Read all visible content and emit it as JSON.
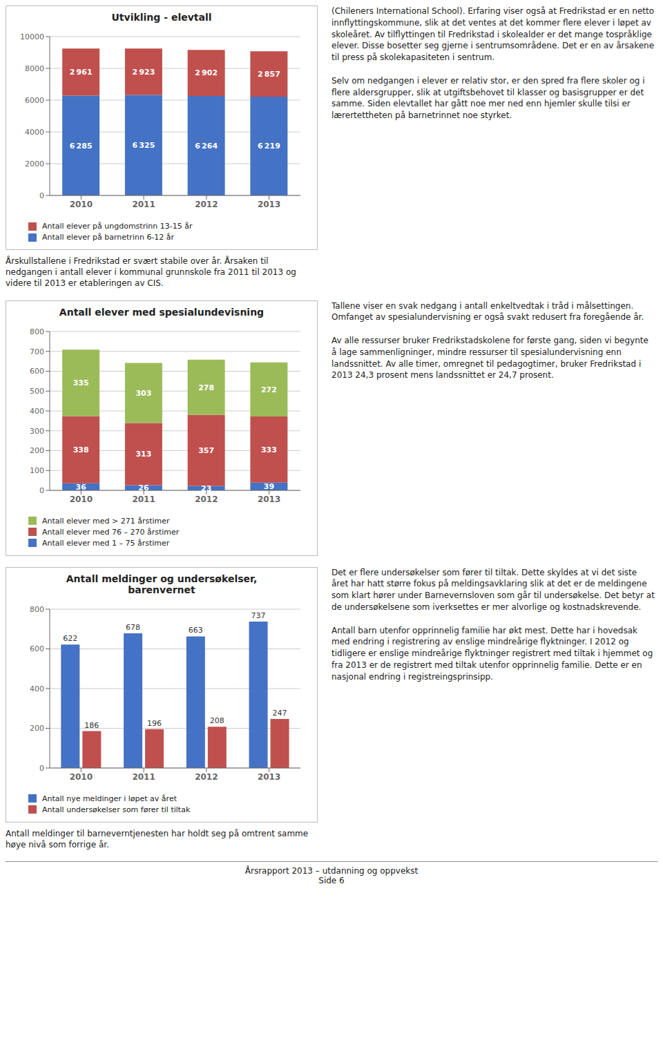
{
  "chart_data": [
    {
      "type": "bar",
      "title": "Utvikling - elevtall",
      "stacked": true,
      "data_labels": true,
      "grid": true,
      "categories": [
        "2010",
        "2011",
        "2012",
        "2013"
      ],
      "series": [
        {
          "name": "Antall elever på barnetrinn 6-12 år",
          "color": "#4472C4",
          "values": [
            6285,
            6325,
            6264,
            6219
          ],
          "value_labels": [
            "6 285",
            "6 325",
            "6 264",
            "6 219"
          ]
        },
        {
          "name": "Antall elever på ungdomstrinn 13-15 år",
          "color": "#C0504D",
          "values": [
            2961,
            2923,
            2902,
            2857
          ],
          "value_labels": [
            "2 961",
            "2 923",
            "2 902",
            "2 857"
          ]
        }
      ],
      "ylim": [
        0,
        10000
      ],
      "yticks": [
        0,
        2000,
        4000,
        6000,
        8000,
        10000
      ],
      "annotations": [
        "(Chileners International School). Erfaring viser også at Fredrikstad er en netto innflyttingskommune, slik at det ventes at det kommer flere elever i løpet av skoleåret. Av tilflyttingen til Fredrikstad i skolealder er det mange tospråklige elever. Disse bosetter seg gjerne i sentrumsområdene. Det er en av årsakene til press på skolekapasiteten i sentrum.\n\nSelv om nedgangen i elever er relativ stor, er den spred fra flere skoler og i flere aldersgrupper, slik at utgiftsbehovet til klasser og basisgrupper er det samme. Siden elevtallet har gått noe mer ned enn hjemler skulle tilsi er lærertettheten på barnetrinnet noe styrket.",
        "Årskullstallene i Fredrikstad er svært stabile over år. Årsaken til nedgangen i antall elever i kommunal grunnskole fra 2011 til 2013 og videre til 2013 er etableringen av CIS."
      ]
    },
    {
      "type": "bar",
      "title": "Antall elever med spesialundevisning",
      "stacked": true,
      "data_labels": true,
      "grid": true,
      "categories": [
        "2010",
        "2011",
        "2012",
        "2013"
      ],
      "series": [
        {
          "name": "Antall elever med 1 – 75 årstimer",
          "color": "#4472C4",
          "values": [
            36,
            26,
            23,
            39
          ]
        },
        {
          "name": "Antall elever med 76 – 270 årstimer",
          "color": "#C0504D",
          "values": [
            338,
            313,
            357,
            333
          ]
        },
        {
          "name": "Antall elever med > 271 årstimer",
          "color": "#9BBB59",
          "values": [
            335,
            303,
            278,
            272
          ]
        }
      ],
      "ylim": [
        0,
        800
      ],
      "yticks": [
        0,
        100,
        200,
        300,
        400,
        500,
        600,
        700,
        800
      ],
      "annotations": [
        "Tallene viser en svak nedgang i antall enkeltvedtak i tråd i målsettingen. Omfanget av spesialundervisning er også svakt redusert fra foregående år.\n\nAv alle ressurser bruker Fredrikstadskolene for første gang, siden vi begynte å lage sammenligninger, mindre ressurser til spesialundervisning enn landssnittet. Av alle timer, omregnet til pedagogtimer, bruker Fredrikstad i 2013 24,3 prosent mens landssnittet er 24,7 prosent."
      ]
    },
    {
      "type": "bar",
      "title": "Antall meldinger og undersøkelser,\nbarenvernet",
      "data_labels": true,
      "grid": true,
      "categories": [
        "2010",
        "2011",
        "2012",
        "2013"
      ],
      "series": [
        {
          "name": "Antall nye meldinger i løpet av året",
          "color": "#4472C4",
          "values": [
            622,
            678,
            663,
            737
          ]
        },
        {
          "name": "Antall undersøkelser som fører til tiltak",
          "color": "#C0504D",
          "values": [
            186,
            196,
            208,
            247
          ]
        }
      ],
      "ylim": [
        0,
        800
      ],
      "yticks": [
        0,
        200,
        400,
        600,
        800
      ],
      "annotations": [
        "Det er flere undersøkelser som fører til tiltak. Dette skyldes at vi det siste året har hatt større fokus på meldingsavklaring slik at det er de meldingene som klart hører under Barnevernsloven som går til undersøkelse. Det betyr at de undersøkelsene som iverksettes er mer alvorlige og kostnadskrevende.\n\nAntall barn utenfor opprinnelig familie har økt mest. Dette har i hovedsak med endring i registrering av enslige mindreårige flyktninger. I 2012 og tidligere er enslige mindreårige flyktninger registrert med tiltak i hjemmet og fra 2013 er de registrert med tiltak utenfor opprinnelig familie. Dette er en nasjonal endring i registreingsprinsipp.",
        "Antall meldinger til barneverntjenesten har holdt seg på omtrent samme høye nivå som forrige år.",
        "Årsrapport 2013 – utdanning og oppvekst",
        "Side 6"
      ]
    }
  ]
}
